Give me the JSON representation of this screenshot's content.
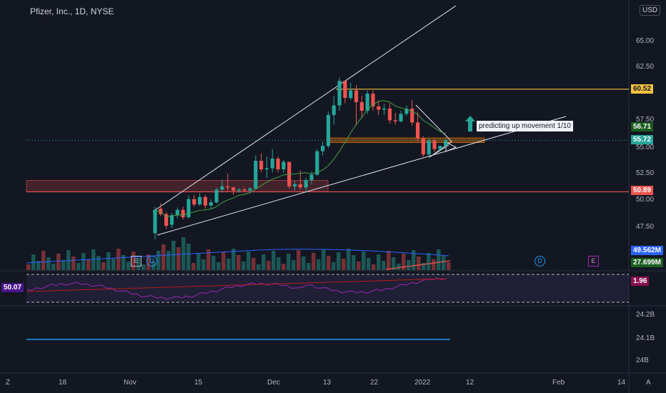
{
  "header": {
    "symbol_title": "Pfizer, Inc., 1D, NYSE",
    "currency": "USD"
  },
  "annotation": {
    "text": "predicting up movement 1/10"
  },
  "price_labels": {
    "resistance": "60.52",
    "high_marker": "56.71",
    "last_price": "55.72",
    "support": "50.89",
    "volume_ma": "49.562M",
    "volume": "27.699M",
    "rsi_right": "1.96",
    "rsi_left": "50.07"
  },
  "colors": {
    "up": "#26a69a",
    "down": "#ef5350",
    "resistance": "#f5c242",
    "support": "#ef5350",
    "rsi": "#9c27b0",
    "rsi_ma": "#b71c1c",
    "volume_ma": "#2962ff",
    "bottom_line": "#2196f3"
  },
  "chart_data": {
    "type": "candlestick",
    "title": "Pfizer, Inc., 1D, NYSE",
    "y_ticks": [
      "65.00",
      "62.50",
      "57.50",
      "55.00",
      "52.50",
      "50.00",
      "47.50"
    ],
    "ylim": [
      45.5,
      67.5
    ],
    "x_ticks": [
      "18",
      "Nov",
      "15",
      "Dec",
      "13",
      "22",
      "2022",
      "12",
      "Feb",
      "14"
    ],
    "levels": {
      "resistance": 60.52,
      "support": 50.89,
      "last": 55.72
    },
    "lower_ticks": [
      "24.2B",
      "24.1B",
      "24B"
    ],
    "event_markers": [
      "E",
      "D",
      "D",
      "E"
    ],
    "candles": [
      {
        "o": 47.0,
        "h": 49.5,
        "l": 46.4,
        "c": 49.2
      },
      {
        "o": 49.3,
        "h": 49.8,
        "l": 48.6,
        "c": 48.8
      },
      {
        "o": 48.8,
        "h": 49.0,
        "l": 47.4,
        "c": 47.7
      },
      {
        "o": 47.8,
        "h": 48.9,
        "l": 47.5,
        "c": 48.7
      },
      {
        "o": 48.7,
        "h": 49.4,
        "l": 48.4,
        "c": 49.2
      },
      {
        "o": 49.2,
        "h": 49.5,
        "l": 48.3,
        "c": 48.5
      },
      {
        "o": 48.5,
        "h": 50.5,
        "l": 48.4,
        "c": 50.2
      },
      {
        "o": 50.2,
        "h": 50.6,
        "l": 49.5,
        "c": 49.7
      },
      {
        "o": 49.7,
        "h": 50.8,
        "l": 49.6,
        "c": 50.4
      },
      {
        "o": 50.4,
        "h": 50.6,
        "l": 49.3,
        "c": 49.6
      },
      {
        "o": 49.6,
        "h": 50.2,
        "l": 49.3,
        "c": 49.9
      },
      {
        "o": 49.9,
        "h": 51.3,
        "l": 49.8,
        "c": 51.1
      },
      {
        "o": 51.1,
        "h": 52.0,
        "l": 50.9,
        "c": 51.4
      },
      {
        "o": 51.4,
        "h": 52.6,
        "l": 50.9,
        "c": 51.3
      },
      {
        "o": 51.3,
        "h": 51.4,
        "l": 50.6,
        "c": 51.0
      },
      {
        "o": 51.0,
        "h": 51.2,
        "l": 50.8,
        "c": 51.1
      },
      {
        "o": 51.1,
        "h": 51.3,
        "l": 50.9,
        "c": 51.0
      },
      {
        "o": 51.0,
        "h": 51.3,
        "l": 50.8,
        "c": 51.2
      },
      {
        "o": 51.2,
        "h": 54.3,
        "l": 51.1,
        "c": 53.8
      },
      {
        "o": 53.8,
        "h": 54.5,
        "l": 52.7,
        "c": 53.0
      },
      {
        "o": 53.0,
        "h": 54.2,
        "l": 52.2,
        "c": 53.1
      },
      {
        "o": 53.1,
        "h": 54.9,
        "l": 52.7,
        "c": 54.0
      },
      {
        "o": 54.0,
        "h": 54.2,
        "l": 52.7,
        "c": 53.0
      },
      {
        "o": 53.0,
        "h": 53.9,
        "l": 52.7,
        "c": 53.7
      },
      {
        "o": 53.7,
        "h": 53.6,
        "l": 51.2,
        "c": 51.4
      },
      {
        "o": 51.4,
        "h": 51.9,
        "l": 51.0,
        "c": 51.6
      },
      {
        "o": 51.6,
        "h": 52.9,
        "l": 51.1,
        "c": 51.3
      },
      {
        "o": 51.3,
        "h": 52.2,
        "l": 50.8,
        "c": 52.0
      },
      {
        "o": 52.0,
        "h": 52.8,
        "l": 51.6,
        "c": 52.5
      },
      {
        "o": 52.5,
        "h": 54.9,
        "l": 52.4,
        "c": 54.7
      },
      {
        "o": 54.7,
        "h": 55.6,
        "l": 54.3,
        "c": 55.2
      },
      {
        "o": 55.2,
        "h": 58.4,
        "l": 55.0,
        "c": 58.1
      },
      {
        "o": 58.1,
        "h": 59.9,
        "l": 57.2,
        "c": 59.0
      },
      {
        "o": 59.0,
        "h": 61.6,
        "l": 58.5,
        "c": 61.3
      },
      {
        "o": 61.3,
        "h": 61.1,
        "l": 59.2,
        "c": 59.7
      },
      {
        "o": 59.7,
        "h": 61.1,
        "l": 59.5,
        "c": 60.4
      },
      {
        "o": 60.4,
        "h": 60.9,
        "l": 57.1,
        "c": 59.3
      },
      {
        "o": 59.3,
        "h": 59.9,
        "l": 57.8,
        "c": 58.5
      },
      {
        "o": 58.5,
        "h": 60.4,
        "l": 58.2,
        "c": 60.1
      },
      {
        "o": 60.1,
        "h": 60.4,
        "l": 58.5,
        "c": 58.9
      },
      {
        "o": 58.9,
        "h": 59.4,
        "l": 58.1,
        "c": 58.6
      },
      {
        "o": 58.6,
        "h": 59.1,
        "l": 58.1,
        "c": 58.7
      },
      {
        "o": 58.7,
        "h": 59.2,
        "l": 57.3,
        "c": 57.6
      },
      {
        "o": 57.6,
        "h": 58.3,
        "l": 57.2,
        "c": 57.5
      },
      {
        "o": 57.5,
        "h": 58.5,
        "l": 57.4,
        "c": 58.2
      },
      {
        "o": 58.2,
        "h": 59.0,
        "l": 58.0,
        "c": 58.7
      },
      {
        "o": 58.7,
        "h": 59.5,
        "l": 57.1,
        "c": 57.4
      },
      {
        "o": 57.4,
        "h": 58.4,
        "l": 55.6,
        "c": 55.9
      },
      {
        "o": 55.9,
        "h": 56.1,
        "l": 54.2,
        "c": 54.4
      },
      {
        "o": 54.4,
        "h": 55.9,
        "l": 54.1,
        "c": 55.7
      },
      {
        "o": 55.7,
        "h": 55.9,
        "l": 54.6,
        "c": 54.9
      },
      {
        "o": 54.9,
        "h": 55.2,
        "l": 54.7,
        "c": 55.2
      },
      {
        "o": 55.2,
        "h": 55.9,
        "l": 55.0,
        "c": 55.7
      }
    ]
  }
}
